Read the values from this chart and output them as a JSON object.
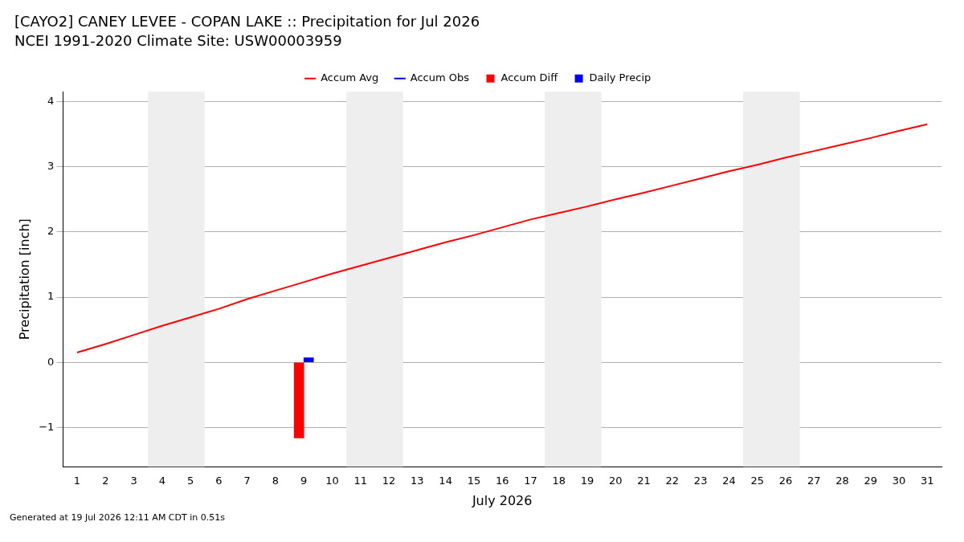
{
  "chart_data": {
    "type": "line",
    "title": "[CAYO2] CANEY LEVEE - COPAN LAKE :: Precipitation for Jul 2026",
    "subtitle": "NCEI 1991-2020 Climate Site: USW00003959",
    "xlabel": "July 2026",
    "ylabel": "Precipitation [inch]",
    "x": [
      1,
      2,
      3,
      4,
      5,
      6,
      7,
      8,
      9,
      10,
      11,
      12,
      13,
      14,
      15,
      16,
      17,
      18,
      19,
      20,
      21,
      22,
      23,
      24,
      25,
      26,
      27,
      28,
      29,
      30,
      31
    ],
    "series": [
      {
        "name": "Accum Avg",
        "color": "#ff0000",
        "values": [
          0.15,
          0.28,
          0.42,
          0.56,
          0.69,
          0.82,
          0.97,
          1.1,
          1.23,
          1.36,
          1.48,
          1.6,
          1.72,
          1.84,
          1.95,
          2.07,
          2.19,
          2.29,
          2.39,
          2.5,
          2.6,
          2.71,
          2.82,
          2.93,
          3.03,
          3.14,
          3.24,
          3.34,
          3.44,
          3.55,
          3.65
        ]
      },
      {
        "name": "Accum Obs",
        "type": "line",
        "color": "#0000ff",
        "values": [
          null,
          null,
          null,
          null,
          null,
          null,
          null,
          null,
          null,
          null,
          null,
          null,
          null,
          null,
          null,
          null,
          null,
          null,
          null,
          null,
          null,
          null,
          null,
          null,
          null,
          null,
          null,
          null,
          null,
          null,
          null
        ]
      },
      {
        "name": "Accum Diff",
        "type": "bar",
        "color": "#ff0000",
        "values": [
          null,
          null,
          null,
          null,
          null,
          null,
          null,
          null,
          -1.16,
          null,
          null,
          null,
          null,
          null,
          null,
          null,
          null,
          null,
          null,
          null,
          null,
          null,
          null,
          null,
          null,
          null,
          null,
          null,
          null,
          null,
          null
        ]
      },
      {
        "name": "Daily Precip",
        "type": "bar",
        "color": "#0000ff",
        "values": [
          null,
          null,
          null,
          null,
          null,
          null,
          null,
          null,
          0.07,
          null,
          null,
          null,
          null,
          null,
          null,
          null,
          null,
          null,
          null,
          null,
          null,
          null,
          null,
          null,
          null,
          null,
          null,
          null,
          null,
          null,
          null
        ]
      }
    ],
    "xlim": [
      0.5,
      31.5
    ],
    "xticks": [
      1,
      2,
      3,
      4,
      5,
      6,
      7,
      8,
      9,
      10,
      11,
      12,
      13,
      14,
      15,
      16,
      17,
      18,
      19,
      20,
      21,
      22,
      23,
      24,
      25,
      26,
      27,
      28,
      29,
      30,
      31
    ],
    "ylim": [
      -1.6,
      4.15
    ],
    "yticks": [
      {
        "value": -1,
        "label": "−1"
      },
      0,
      1,
      2,
      3,
      4
    ],
    "bands": [
      {
        "axis": "x",
        "from": 3.5,
        "to": 5.5,
        "color": "#eeeeee"
      },
      {
        "axis": "x",
        "from": 10.5,
        "to": 12.5,
        "color": "#eeeeee"
      },
      {
        "axis": "x",
        "from": 17.5,
        "to": 19.5,
        "color": "#eeeeee"
      },
      {
        "axis": "x",
        "from": 24.5,
        "to": 26.5,
        "color": "#eeeeee"
      }
    ],
    "grid": "y",
    "legend": "top",
    "marker": "none",
    "line_style": "solid",
    "annotations": [
      "Generated at 19 Jul 2026 12:11 AM CDT in 0.51s"
    ]
  }
}
